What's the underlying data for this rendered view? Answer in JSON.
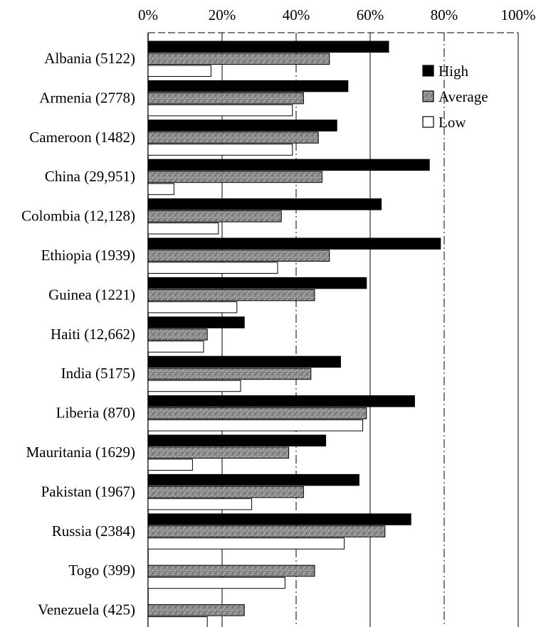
{
  "chart_data": {
    "type": "bar",
    "orientation": "horizontal",
    "x_tick_labels": [
      "0%",
      "20%",
      "40%",
      "60%",
      "80%",
      "100%"
    ],
    "xlim": [
      0,
      100
    ],
    "categories": [
      "Albania (5122)",
      "Armenia (2778)",
      "Cameroon (1482)",
      "China (29,951)",
      "Colombia (12,128)",
      "Ethiopia (1939)",
      "Guinea (1221)",
      "Haiti (12,662)",
      "India (5175)",
      "Liberia (870)",
      "Mauritania (1629)",
      "Pakistan (1967)",
      "Russia (2384)",
      "Togo (399)",
      "Venezuela (425)"
    ],
    "series": [
      {
        "name": "High",
        "color": "#000000",
        "pattern": "solid",
        "values": [
          65,
          54,
          51,
          76,
          63,
          79,
          59,
          26,
          52,
          72,
          48,
          57,
          71,
          null,
          null
        ]
      },
      {
        "name": "Average",
        "color": "#8c8c8c",
        "pattern": "speckled",
        "values": [
          49,
          42,
          46,
          47,
          36,
          49,
          45,
          16,
          44,
          59,
          38,
          42,
          64,
          45,
          26
        ]
      },
      {
        "name": "Low",
        "color": "#ffffff",
        "pattern": "outline",
        "values": [
          17,
          39,
          39,
          7,
          19,
          35,
          24,
          15,
          25,
          58,
          12,
          28,
          53,
          37,
          16
        ]
      }
    ],
    "legend_position": "top-right",
    "grid": "vertical"
  }
}
